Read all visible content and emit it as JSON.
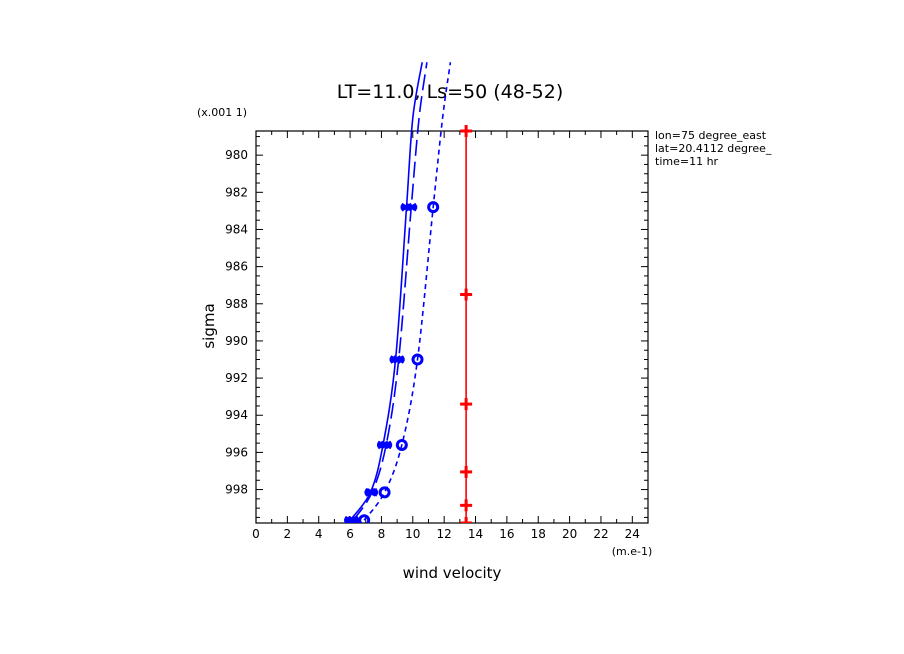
{
  "chart_data": {
    "type": "line",
    "title": "LT=11.0, Ls=50 (48-52)",
    "xlabel": "wind velocity",
    "ylabel": "sigma",
    "x_unit": "(m.e-1)",
    "y_unit": "(x.001 1)",
    "xlim": [
      0,
      25
    ],
    "ylim": [
      999.8,
      978.7
    ],
    "x_ticks": [
      0,
      2,
      4,
      6,
      8,
      10,
      12,
      14,
      16,
      18,
      20,
      22,
      24
    ],
    "y_ticks": [
      980,
      982,
      984,
      986,
      988,
      990,
      992,
      994,
      996,
      998
    ],
    "annotations": [
      "lon=75 degree_east",
      "lat=20.4112 degree_",
      "time=11 hr"
    ],
    "series": [
      {
        "style": "solid",
        "color": "#0000ff",
        "marker": "x",
        "points": [
          [
            6.0,
            999.65
          ],
          [
            7.3,
            998.15
          ],
          [
            8.1,
            995.6
          ],
          [
            8.9,
            991.0
          ],
          [
            9.6,
            982.8
          ],
          [
            10.0,
            978.0
          ],
          [
            10.6,
            975.0
          ]
        ]
      },
      {
        "style": "longdash",
        "color": "#0000ff",
        "marker": "x",
        "points": [
          [
            6.2,
            999.65
          ],
          [
            7.4,
            998.15
          ],
          [
            8.3,
            995.6
          ],
          [
            9.1,
            991.0
          ],
          [
            9.9,
            982.8
          ],
          [
            10.4,
            978.0
          ],
          [
            10.9,
            975.0
          ]
        ]
      },
      {
        "style": "shortdash",
        "color": "#0000ff",
        "marker": "o",
        "points": [
          [
            6.9,
            999.65
          ],
          [
            8.2,
            998.15
          ],
          [
            9.3,
            995.6
          ],
          [
            10.3,
            991.0
          ],
          [
            11.3,
            982.8
          ],
          [
            11.9,
            978.0
          ],
          [
            12.4,
            975.0
          ]
        ]
      },
      {
        "style": "solid",
        "color": "#ff0000",
        "marker": "+",
        "points": [
          [
            13.4,
            999.8
          ],
          [
            13.4,
            998.85
          ],
          [
            13.4,
            997.05
          ],
          [
            13.4,
            993.4
          ],
          [
            13.4,
            987.5
          ],
          [
            13.4,
            978.7
          ]
        ]
      }
    ]
  }
}
